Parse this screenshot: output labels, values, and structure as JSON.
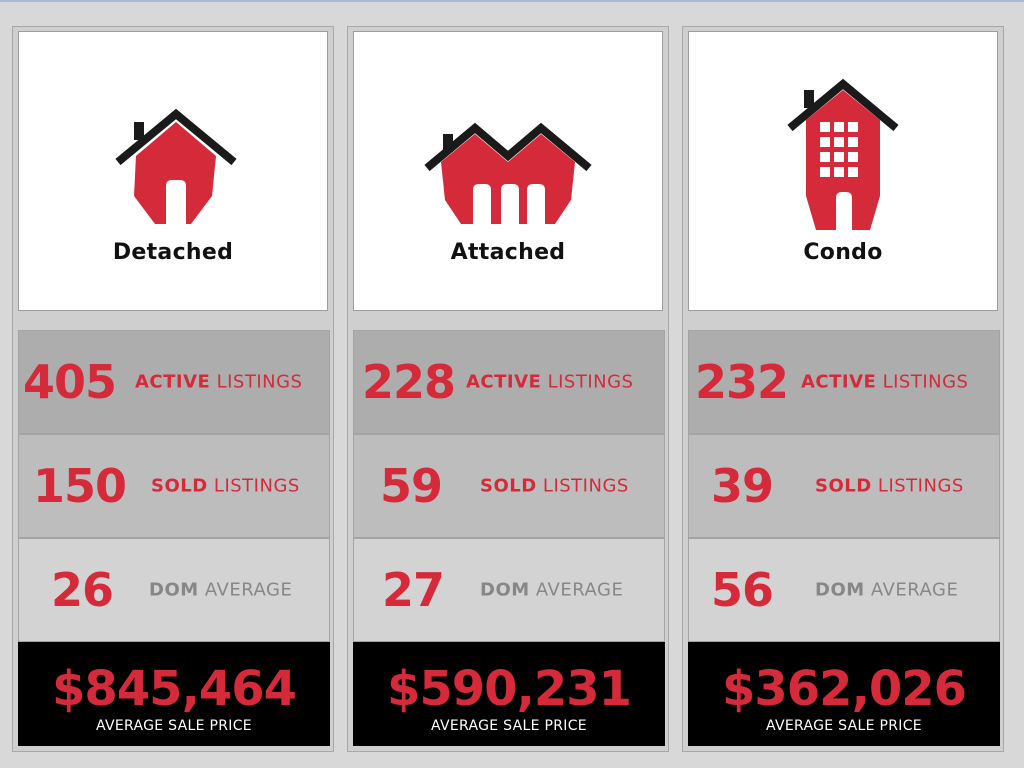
{
  "colors": {
    "accent_red": "#d42a3a",
    "roof_black": "#1a1a1a",
    "price_bg": "#000000",
    "label_grey": "#878787"
  },
  "cards": [
    {
      "type": "Detached",
      "icon": "detached-house-icon",
      "active": {
        "value": "405",
        "word": "ACTIVE",
        "rest": " LISTINGS"
      },
      "sold": {
        "value": "150",
        "word": "SOLD",
        "rest": " LISTINGS"
      },
      "dom": {
        "value": "26",
        "word": "DOM",
        "rest": " AVERAGE"
      },
      "price": {
        "value": "$845,464",
        "caption": "AVERAGE SALE PRICE"
      }
    },
    {
      "type": "Attached",
      "icon": "attached-house-icon",
      "active": {
        "value": "228",
        "word": "ACTIVE",
        "rest": " LISTINGS"
      },
      "sold": {
        "value": "59",
        "word": "SOLD",
        "rest": " LISTINGS"
      },
      "dom": {
        "value": "27",
        "word": "DOM",
        "rest": " AVERAGE"
      },
      "price": {
        "value": "$590,231",
        "caption": "AVERAGE SALE PRICE"
      }
    },
    {
      "type": "Condo",
      "icon": "condo-building-icon",
      "active": {
        "value": "232",
        "word": "ACTIVE",
        "rest": " LISTINGS"
      },
      "sold": {
        "value": "39",
        "word": "SOLD",
        "rest": " LISTINGS"
      },
      "dom": {
        "value": "56",
        "word": "DOM",
        "rest": " AVERAGE"
      },
      "price": {
        "value": "$362,026",
        "caption": "AVERAGE SALE PRICE"
      }
    }
  ]
}
